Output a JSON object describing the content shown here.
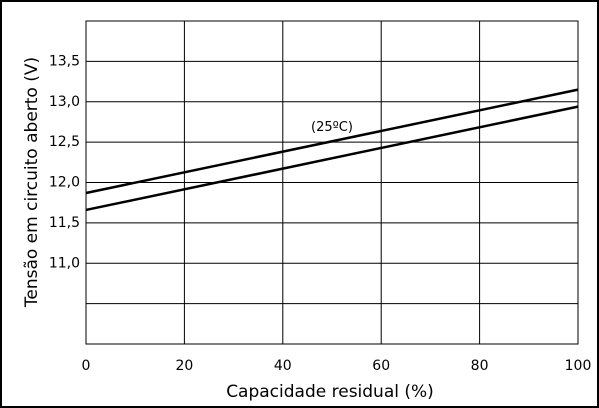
{
  "chart_data": {
    "type": "line",
    "x_label": "Capacidade residual (%)",
    "y_label": "Tensão em circuito aberto (V)",
    "annotation": {
      "text": "(25ºC)",
      "x": 50,
      "y": 12.68
    },
    "x": [
      0,
      100
    ],
    "series": [
      {
        "color": "#000000",
        "values": [
          11.87,
          13.15
        ]
      },
      {
        "color": "#000000",
        "values": [
          11.66,
          12.94
        ]
      }
    ],
    "xlim": [
      0,
      100
    ],
    "xticks": [
      0,
      20,
      40,
      60,
      80,
      100
    ],
    "ylim": [
      10,
      14
    ],
    "yticks": [
      {
        "value": 10.5,
        "label": null
      },
      {
        "value": 11.0,
        "label": "11,0"
      },
      {
        "value": 11.5,
        "label": "11,5"
      },
      {
        "value": 12.0,
        "label": "12,0"
      },
      {
        "value": 12.5,
        "label": "12,5"
      },
      {
        "value": 13.0,
        "label": "13,0"
      },
      {
        "value": 13.5,
        "label": "13,5"
      }
    ],
    "grid": true
  }
}
